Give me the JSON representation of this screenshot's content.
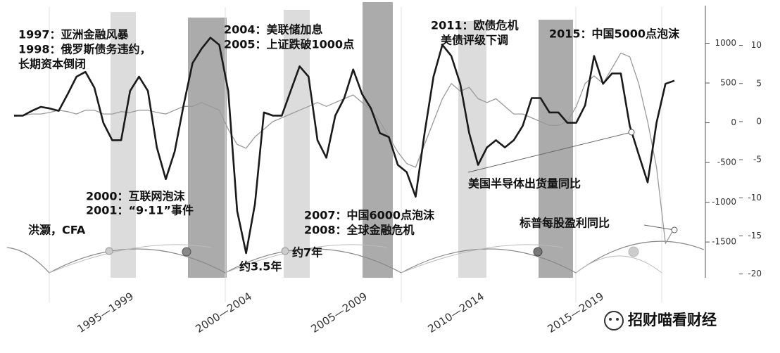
{
  "chart_data": {
    "type": "line",
    "series": [
      {
        "name": "美国半导体出货量同比",
        "color": "#1a1a1a",
        "values": [
          90,
          90,
          150,
          200,
          180,
          150,
          360,
          580,
          640,
          440,
          0,
          -220,
          -220,
          400,
          580,
          400,
          -310,
          -710,
          -360,
          220,
          750,
          930,
          1070,
          980,
          400,
          -1110,
          -1640,
          -1020,
          130,
          90,
          90,
          400,
          710,
          580,
          -220,
          -440,
          90,
          310,
          670,
          360,
          180,
          -130,
          -180,
          -530,
          -620,
          -930,
          -130,
          580,
          980,
          840,
          490,
          -130,
          -530,
          -310,
          -220,
          -310,
          -220,
          -40,
          310,
          310,
          130,
          130,
          0,
          0,
          220,
          840,
          490,
          620,
          620,
          -40,
          -400,
          -750,
          0,
          490,
          530
        ]
      },
      {
        "name": "标普每股盈利同比",
        "color": "#9a9a9a",
        "axis": "y2",
        "values": [
          0.7,
          0.8,
          1,
          1,
          1.2,
          1.5,
          1.3,
          1,
          1.5,
          1.5,
          1,
          1,
          1.3,
          1.2,
          1.5,
          1.5,
          1.2,
          1,
          1.5,
          2,
          2,
          2.5,
          2,
          1.5,
          -1,
          -3,
          -3.5,
          -2,
          -1,
          0,
          0.5,
          1,
          1.5,
          2,
          2.5,
          2,
          2.5,
          3,
          3.5,
          2.5,
          1.5,
          0,
          -2,
          -4,
          -5.5,
          -6,
          -3,
          0,
          3,
          5,
          4,
          4.5,
          3,
          2.5,
          3,
          2,
          1,
          1,
          0.5,
          0,
          -0.5,
          -0.5,
          0,
          2,
          5,
          6,
          5,
          7,
          9,
          8.5,
          5,
          0,
          -6,
          -16,
          -14
        ]
      }
    ],
    "ylim": [
      -1950,
      1500
    ],
    "yticks": [
      1000,
      500,
      0,
      -500,
      -1000,
      -1500
    ],
    "y2lim": [
      -20.5,
      15.5
    ],
    "y2ticks": [
      10,
      5,
      0,
      -5,
      -10,
      -15,
      -20
    ],
    "period_labels": [
      "1995—1999",
      "2000—2004",
      "2005—2009",
      "2010—2014",
      "2015—2019"
    ],
    "annotations": [
      "1997：亚洲金融风暴",
      "1998：俄罗斯债务违约，",
      "长期资本倒闭",
      "2004：美联储加息",
      "2005：上证跌破1000点",
      "2011：欧债危机",
      "美债评级下调",
      "2015：中国5000点泡沫",
      "2000：互联网泡沫",
      "2001：“9·11”事件",
      "洪灏，CFA",
      "约7年",
      "约3.5年",
      "2007：中国6000点泡沫",
      "2008：全球金融危机"
    ]
  },
  "watermark": "招财喵看财经"
}
